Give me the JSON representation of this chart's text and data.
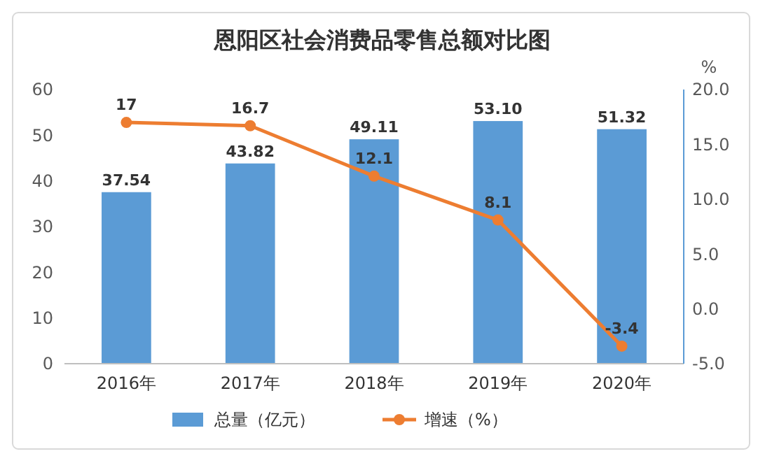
{
  "chart_data": {
    "type": "bar",
    "title": "恩阳区社会消费品零售总额对比图",
    "y2label": "%",
    "categories": [
      "2016年",
      "2017年",
      "2018年",
      "2019年",
      "2020年"
    ],
    "series": [
      {
        "name": "总量（亿元）",
        "color": "#5b9bd5",
        "values": [
          37.54,
          43.82,
          49.11,
          53.1,
          51.32
        ],
        "value_labels": [
          "37.54",
          "43.82",
          "49.11",
          "53.10",
          "51.32"
        ]
      },
      {
        "name": "增速（%）",
        "type": "line",
        "axis": "y2",
        "color": "#ed7d31",
        "values": [
          17,
          16.7,
          12.1,
          8.1,
          -3.4
        ],
        "value_labels": [
          "17",
          "16.7",
          "12.1",
          "8.1",
          "-3.4"
        ]
      }
    ],
    "ylim": [
      0,
      60
    ],
    "yticks": [
      0,
      10,
      20,
      30,
      40,
      50,
      60
    ],
    "y2lim": [
      -5,
      20
    ],
    "y2ticks": [
      {
        "value": -5,
        "label": "-5.0"
      },
      {
        "value": 0,
        "label": "0.0"
      },
      {
        "value": 5,
        "label": "5.0"
      },
      {
        "value": 10,
        "label": "10.0"
      },
      {
        "value": 15,
        "label": "15.0"
      },
      {
        "value": 20,
        "label": "20.0"
      }
    ],
    "marker": "circle",
    "legend": "bottom"
  }
}
